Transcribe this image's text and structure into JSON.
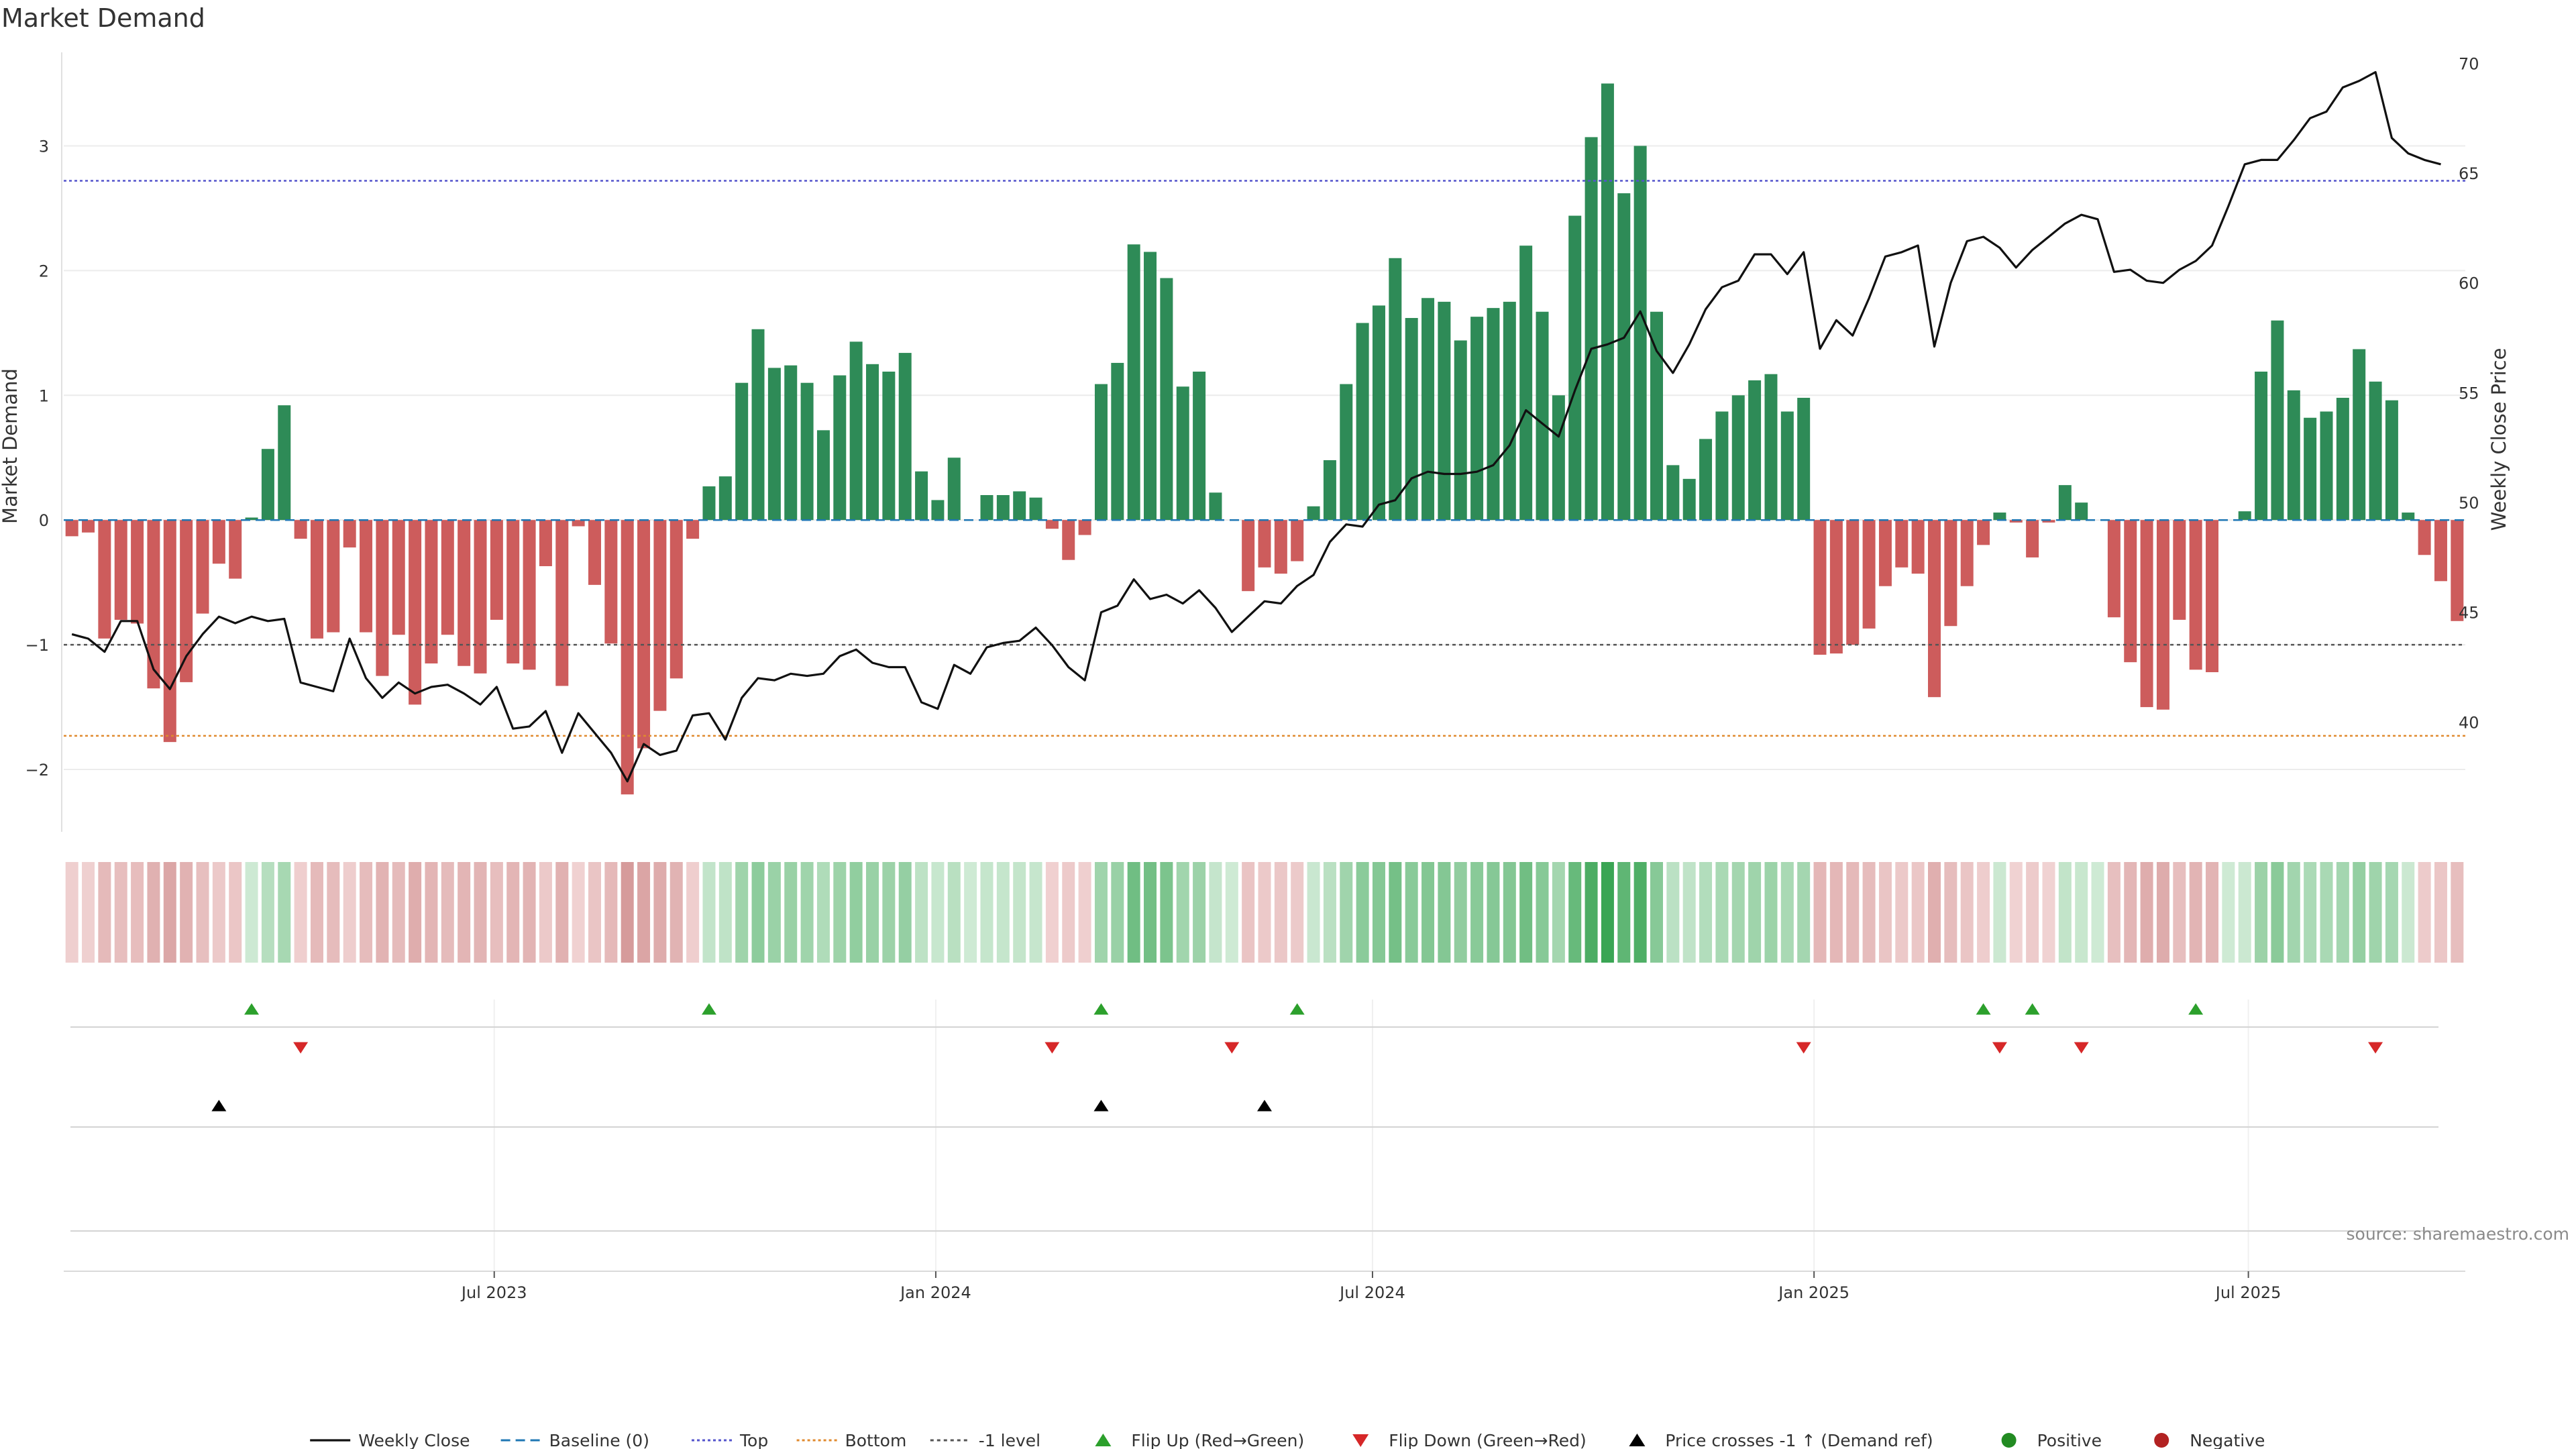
{
  "chart_data": {
    "type": "bar",
    "title": "Market Demand",
    "ylabel_left": "Market Demand",
    "ylabel_right": "Weekly Close Price",
    "source": "source: sharemaestro.com",
    "ylim_left": [
      -2.5,
      3.75
    ],
    "ylim_right": [
      35,
      70.5
    ],
    "yticks_left": [
      {
        "value": 3,
        "label": "3"
      },
      {
        "value": 2,
        "label": "2"
      },
      {
        "value": 1,
        "label": "1"
      },
      {
        "value": 0,
        "label": "0"
      },
      {
        "value": -1,
        "label": "−1"
      },
      {
        "value": -2,
        "label": "−2"
      }
    ],
    "yticks_right": [
      {
        "value": 70,
        "label": "70"
      },
      {
        "value": 65,
        "label": "65"
      },
      {
        "value": 60,
        "label": "60"
      },
      {
        "value": 55,
        "label": "55"
      },
      {
        "value": 50,
        "label": "50"
      },
      {
        "value": 45,
        "label": "45"
      },
      {
        "value": 40,
        "label": "40"
      }
    ],
    "x_start": "2023-01-06",
    "x_end": "2025-09-26",
    "xticks": [
      {
        "date": "2023-07-01",
        "label": "Jul 2023"
      },
      {
        "date": "2024-01-01",
        "label": "Jan 2024"
      },
      {
        "date": "2024-07-01",
        "label": "Jul 2024"
      },
      {
        "date": "2025-01-01",
        "label": "Jan 2025"
      },
      {
        "date": "2025-07-01",
        "label": "Jul 2025"
      }
    ],
    "reference_lines": {
      "baseline": 0,
      "top": 2.72,
      "bottom": -1.73,
      "minus_one": -1
    },
    "colors": {
      "positive": "#2e8b57",
      "negative": "#cd5c5c",
      "price": "#111111",
      "top": "#5555cc",
      "bottom": "#e08a2e",
      "minus_one": "#555555",
      "baseline": "#1f77b4",
      "flip_up": "#2ca02c",
      "flip_down": "#d62728",
      "cross": "#000000",
      "legend_positive": "#228b22",
      "legend_negative": "#b22222"
    },
    "demand": [
      -0.13,
      -0.1,
      -0.95,
      -0.8,
      -0.83,
      -1.35,
      -1.78,
      -1.3,
      -0.75,
      -0.35,
      -0.47,
      0.02,
      0.57,
      0.92,
      -0.15,
      -0.95,
      -0.9,
      -0.22,
      -0.9,
      -1.25,
      -0.92,
      -1.48,
      -1.15,
      -0.92,
      -1.17,
      -1.23,
      -0.8,
      -1.15,
      -1.2,
      -0.37,
      -1.33,
      -0.05,
      -0.52,
      -0.99,
      -2.2,
      -1.83,
      -1.53,
      -1.27,
      -0.15,
      0.27,
      0.35,
      1.1,
      1.53,
      1.22,
      1.24,
      1.1,
      0.72,
      1.16,
      1.43,
      1.25,
      1.19,
      1.34,
      0.39,
      0.16,
      0.5,
      0.0,
      0.2,
      0.2,
      0.23,
      0.18,
      -0.07,
      -0.32,
      -0.12,
      1.09,
      1.26,
      2.21,
      2.15,
      1.94,
      1.07,
      1.19,
      0.22,
      0.0,
      -0.57,
      -0.38,
      -0.43,
      -0.33,
      0.11,
      0.48,
      1.09,
      1.58,
      1.72,
      2.1,
      1.62,
      1.78,
      1.75,
      1.44,
      1.63,
      1.7,
      1.75,
      2.2,
      1.67,
      1.0,
      2.44,
      3.07,
      3.5,
      2.62,
      3.0,
      1.67,
      0.44,
      0.33,
      0.65,
      0.87,
      1.0,
      1.12,
      1.17,
      0.87,
      0.98,
      -1.08,
      -1.07,
      -1.0,
      -0.87,
      -0.53,
      -0.38,
      -0.43,
      -1.42,
      -0.85,
      -0.53,
      -0.2,
      0.06,
      -0.02,
      -0.3,
      -0.02,
      0.28,
      0.14,
      0.0,
      -0.78,
      -1.14,
      -1.5,
      -1.52,
      -0.8,
      -1.2,
      -1.22,
      0.0,
      0.07,
      1.19,
      1.6,
      1.04,
      0.82,
      0.87,
      0.98,
      1.37,
      1.11,
      0.96,
      0.06,
      -0.28,
      -0.49,
      -0.81
    ],
    "price": [
      44.0,
      43.8,
      43.2,
      44.6,
      44.6,
      42.4,
      41.5,
      43.0,
      44.0,
      44.8,
      44.5,
      44.8,
      44.6,
      44.7,
      41.8,
      41.6,
      41.4,
      43.8,
      42.0,
      41.1,
      41.8,
      41.3,
      41.6,
      41.7,
      41.3,
      40.8,
      41.6,
      39.7,
      39.8,
      40.5,
      38.6,
      40.4,
      39.5,
      38.6,
      37.3,
      39.0,
      38.5,
      38.7,
      40.3,
      40.4,
      39.2,
      41.1,
      42.0,
      41.9,
      42.2,
      42.1,
      42.2,
      43.0,
      43.3,
      42.7,
      42.5,
      42.5,
      40.9,
      40.6,
      42.6,
      42.2,
      43.4,
      43.6,
      43.7,
      44.3,
      43.5,
      42.5,
      41.9,
      45.0,
      45.3,
      46.5,
      45.6,
      45.8,
      45.4,
      46.0,
      45.2,
      44.1,
      44.8,
      45.5,
      45.4,
      46.2,
      46.7,
      48.2,
      49.0,
      48.9,
      49.9,
      50.1,
      51.1,
      51.4,
      51.3,
      51.3,
      51.4,
      51.7,
      52.6,
      54.2,
      53.6,
      53.0,
      55.1,
      57.0,
      57.2,
      57.5,
      58.7,
      56.9,
      55.9,
      57.2,
      58.8,
      59.8,
      60.1,
      61.3,
      61.3,
      60.4,
      61.4,
      57.0,
      58.3,
      57.6,
      59.3,
      61.2,
      61.4,
      61.7,
      57.1,
      60.0,
      61.9,
      62.1,
      61.6,
      60.7,
      61.5,
      62.1,
      62.7,
      63.1,
      62.9,
      60.5,
      60.6,
      60.1,
      60.0,
      60.6,
      61.0,
      61.7,
      63.5,
      65.4,
      65.6,
      65.6,
      66.5,
      67.5,
      67.8,
      68.9,
      69.2,
      69.6,
      66.6,
      65.9,
      65.6,
      65.4
    ],
    "flip_up": [
      11,
      39,
      63,
      75,
      117,
      120,
      130
    ],
    "flip_down": [
      14,
      60,
      71,
      106,
      118,
      123,
      141
    ],
    "cross_up": [
      9,
      63,
      73
    ],
    "legend": [
      {
        "label": "Weekly Close",
        "symbol": "line"
      },
      {
        "label": "Baseline (0)",
        "symbol": "dashed"
      },
      {
        "label": "Top",
        "symbol": "dotted-blue"
      },
      {
        "label": "Bottom",
        "symbol": "dotted-orange"
      },
      {
        "label": "-1 level",
        "symbol": "dotted-gray"
      },
      {
        "label": "Flip Up (Red→Green)",
        "symbol": "triangle-up-green"
      },
      {
        "label": "Flip Down (Green→Red)",
        "symbol": "triangle-down-red"
      },
      {
        "label": "Price crosses -1 ↑ (Demand ref)",
        "symbol": "triangle-up-black"
      },
      {
        "label": "Positive",
        "symbol": "dot-green"
      },
      {
        "label": "Negative",
        "symbol": "dot-red"
      }
    ]
  }
}
